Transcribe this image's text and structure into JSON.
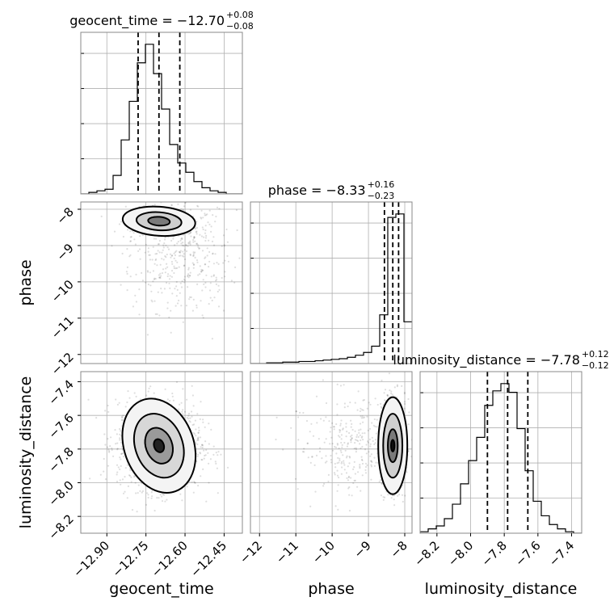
{
  "chart_data": {
    "type": "corner",
    "parameters": [
      "geocent_time",
      "phase",
      "luminosity_distance"
    ],
    "axis_labels": {
      "geocent_time": "geocent_time",
      "phase": "phase",
      "luminosity_distance": "luminosity_distance"
    },
    "ranges": {
      "geocent_time": [
        -13.0,
        -12.38
      ],
      "phase": [
        -12.25,
        -7.8
      ],
      "luminosity_distance": [
        -8.3,
        -7.34
      ]
    },
    "ticks": {
      "geocent_time": [
        -12.9,
        -12.75,
        -12.6,
        -12.45
      ],
      "phase": [
        -12,
        -11,
        -10,
        -9,
        -8
      ],
      "luminosity_distance": [
        -8.2,
        -8.0,
        -7.8,
        -7.6,
        -7.4
      ]
    },
    "tick_labels": {
      "geocent_time": [
        "−12.90",
        "−12.75",
        "−12.60",
        "−12.45"
      ],
      "phase": [
        "−12",
        "−11",
        "−10",
        "−9",
        "−8"
      ],
      "luminosity_distance": [
        "−8.2",
        "−8.0",
        "−7.8",
        "−7.6",
        "−7.4"
      ]
    },
    "titles": [
      {
        "param": "geocent_time",
        "text": "geocent_time = −12.70",
        "sup": "+0.08",
        "sub": "−0.08"
      },
      {
        "param": "phase",
        "text": "phase = −8.33",
        "sup": "+0.16",
        "sub": "−0.23"
      },
      {
        "param": "luminosity_distance",
        "text": "luminosity_distance = −7.78",
        "sup": "+0.12",
        "sub": "−0.12"
      }
    ],
    "quantiles": {
      "geocent_time": [
        -12.78,
        -12.7,
        -12.62
      ],
      "phase": [
        -8.56,
        -8.33,
        -8.17
      ],
      "luminosity_distance": [
        -7.9,
        -7.78,
        -7.66
      ]
    },
    "histograms": {
      "geocent_time": {
        "edges": [
          -13.0,
          -12.969,
          -12.938,
          -12.907,
          -12.876,
          -12.845,
          -12.814,
          -12.783,
          -12.752,
          -12.721,
          -12.69,
          -12.659,
          -12.628,
          -12.597,
          -12.566,
          -12.535,
          -12.504,
          -12.473,
          -12.442,
          -12.411,
          -12.38
        ],
        "counts": [
          0,
          1,
          2,
          3,
          12,
          35,
          60,
          85,
          97,
          78,
          55,
          32,
          20,
          14,
          8,
          4,
          2,
          1,
          0,
          0
        ]
      },
      "phase": {
        "edges": [
          -12.25,
          -12.027,
          -11.805,
          -11.582,
          -11.36,
          -11.138,
          -10.915,
          -10.693,
          -10.47,
          -10.248,
          -10.025,
          -9.803,
          -9.58,
          -9.358,
          -9.135,
          -8.913,
          -8.69,
          -8.468,
          -8.245,
          -8.023,
          -7.8
        ],
        "counts": [
          0,
          0,
          1,
          1,
          2,
          2,
          3,
          3,
          4,
          5,
          6,
          7,
          9,
          12,
          16,
          25,
          70,
          210,
          215,
          60
        ]
      },
      "luminosity_distance": {
        "edges": [
          -8.3,
          -8.252,
          -8.204,
          -8.156,
          -8.108,
          -8.06,
          -8.012,
          -7.964,
          -7.916,
          -7.868,
          -7.82,
          -7.772,
          -7.724,
          -7.676,
          -7.628,
          -7.58,
          -7.532,
          -7.484,
          -7.436,
          -7.388,
          -7.34
        ],
        "counts": [
          1,
          3,
          5,
          10,
          20,
          34,
          50,
          66,
          88,
          98,
          103,
          97,
          72,
          43,
          22,
          12,
          6,
          3,
          1,
          0
        ]
      }
    },
    "grid": true
  }
}
